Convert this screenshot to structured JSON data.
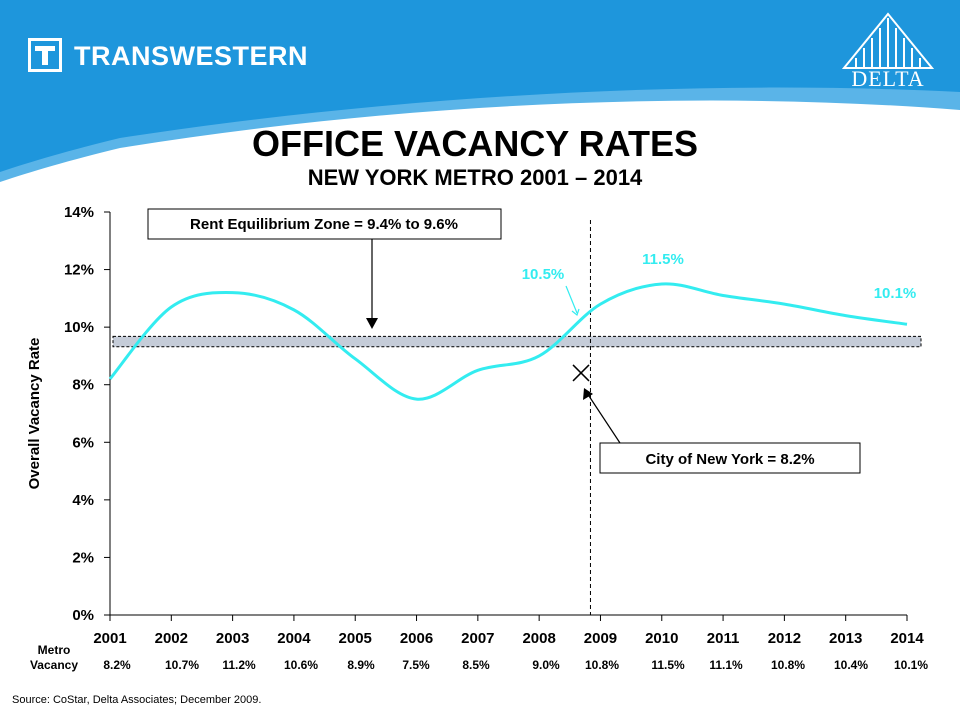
{
  "header": {
    "brand": "TRANSWESTERN",
    "partner": "DELTA",
    "colors": {
      "band": "#1e96dc",
      "band_light": "#5ab4e8"
    }
  },
  "title": "OFFICE VACANCY RATES",
  "subtitle": "NEW YORK METRO 2001 – 2014",
  "source": "Source: CoStar, Delta Associates; December 2009.",
  "chart_data": {
    "type": "line",
    "ylabel": "Overall Vacancy Rate",
    "ylim": [
      0,
      14
    ],
    "yticks": [
      "0%",
      "2%",
      "4%",
      "6%",
      "8%",
      "10%",
      "12%",
      "14%"
    ],
    "categories": [
      "2001",
      "2002",
      "2003",
      "2004",
      "2005",
      "2006",
      "2007",
      "2008",
      "2009",
      "2010",
      "2011",
      "2012",
      "2013",
      "2014"
    ],
    "series": [
      {
        "values": [
          8.2,
          10.7,
          11.2,
          10.6,
          8.9,
          7.5,
          8.5,
          9.0,
          10.8,
          11.5,
          11.1,
          10.8,
          10.4,
          10.1
        ],
        "color": "#33ecf0"
      }
    ],
    "table": {
      "row_label_1": "Metro",
      "row_label_2": "Vacancy",
      "values": [
        "8.2%",
        "10.7%",
        "11.2%",
        "10.6%",
        "8.9%",
        "7.5%",
        "8.5%",
        "9.0%",
        "10.8%",
        "11.5%",
        "11.1%",
        "10.8%",
        "10.4%",
        "10.1%"
      ]
    },
    "equilibrium_zone": {
      "from": 9.4,
      "to": 9.6,
      "label": "Rent Equilibrium Zone = 9.4% to 9.6%"
    },
    "divider_year": 2009,
    "city_marker": {
      "value": 8.2,
      "label": "City of New York = 8.2%"
    },
    "annotations": [
      {
        "text": "10.5%",
        "x": 2008.6,
        "y": 10.5
      },
      {
        "text": "11.5%",
        "x": 2010.0,
        "y": 11.5
      },
      {
        "text": "10.1%",
        "x": 2014.0,
        "y": 10.1
      }
    ]
  }
}
